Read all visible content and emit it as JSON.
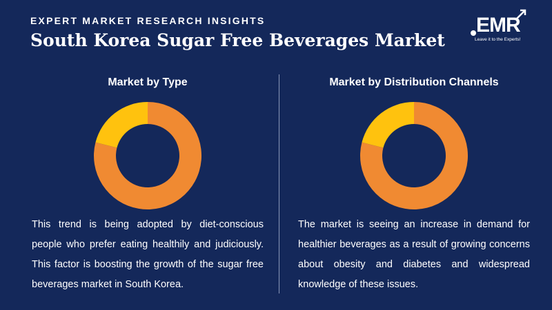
{
  "header": {
    "kicker": "EXPERT MARKET RESEARCH INSIGHTS",
    "title": "South Korea Sugar Free Beverages Market"
  },
  "logo": {
    "wordmark": "EMR",
    "tagline": "Leave it to the Experts!"
  },
  "colors": {
    "background": "#14285a",
    "orange": "#f08a32",
    "yellow": "#ffc20e"
  },
  "panels": {
    "left": {
      "title": "Market by Type",
      "text": "This trend is being adopted by diet-conscious people who prefer eating healthily and judiciously. This factor is boosting the growth of the sugar free beverages market in South Korea."
    },
    "right": {
      "title": "Market by Distribution Channels",
      "text": "The market is seeing an increase in demand for healthier beverages as a result of growing concerns about obesity and diabetes and widespread knowledge of these issues."
    }
  },
  "chart_data": [
    {
      "type": "pie",
      "donut": true,
      "title": "Market by Type",
      "slices": [
        {
          "value": 79,
          "color": "#f08a32"
        },
        {
          "value": 21,
          "color": "#ffc20e"
        }
      ]
    },
    {
      "type": "pie",
      "donut": true,
      "title": "Market by Distribution Channels",
      "slices": [
        {
          "value": 79,
          "color": "#f08a32"
        },
        {
          "value": 21,
          "color": "#ffc20e"
        }
      ]
    }
  ]
}
